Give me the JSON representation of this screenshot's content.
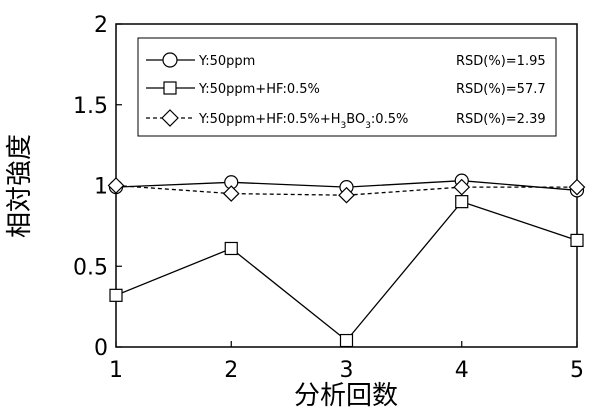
{
  "chart_data": {
    "type": "line",
    "xlabel": "分析回数",
    "ylabel": "相対強度",
    "x": [
      1,
      2,
      3,
      4,
      5
    ],
    "xlim": [
      1,
      5
    ],
    "ylim": [
      0,
      2
    ],
    "x_ticks": [
      "1",
      "2",
      "3",
      "4",
      "5"
    ],
    "y_ticks": [
      {
        "value": 0,
        "label": "0"
      },
      {
        "value": 0.5,
        "label": "0.5"
      },
      {
        "value": 1,
        "label": "1"
      },
      {
        "value": 1.5,
        "label": "1.5"
      },
      {
        "value": 2,
        "label": "2"
      }
    ],
    "grid": false,
    "legend_position": "top",
    "series": [
      {
        "key": "s1",
        "name": "Y:50ppm",
        "rsd": "RSD(%)=1.95",
        "marker": "circle",
        "line_style": "solid",
        "values": [
          0.99,
          1.02,
          0.99,
          1.03,
          0.97
        ]
      },
      {
        "key": "s2",
        "name": "Y:50ppm+HF:0.5%",
        "rsd": "RSD(%)=57.7",
        "marker": "square",
        "line_style": "solid",
        "values": [
          0.32,
          0.61,
          0.04,
          0.9,
          0.66
        ]
      },
      {
        "key": "s3",
        "name_parts": [
          "Y:50ppm+HF:0.5%+H",
          "3",
          "BO",
          "3",
          ":0.5%"
        ],
        "rsd": "RSD(%)=2.39",
        "marker": "diamond",
        "line_style": "dashed",
        "values": [
          1.0,
          0.95,
          0.94,
          0.99,
          0.99
        ]
      }
    ]
  }
}
